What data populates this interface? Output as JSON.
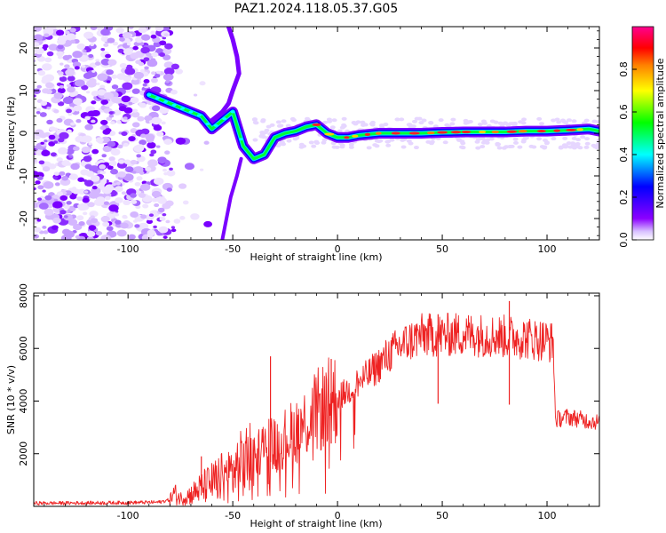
{
  "figure": {
    "title": "PAZ1.2024.118.05.37.G05"
  },
  "chart_data": [
    {
      "type": "heatmap",
      "title": "PAZ1.2024.118.05.37.G05",
      "xlabel": "Height of straight line (km)",
      "ylabel": "Frequency (Hz)",
      "xlim": [
        -145,
        125
      ],
      "ylim": [
        -25,
        25
      ],
      "xticks": [
        -100,
        -50,
        0,
        50,
        100
      ],
      "yticks": [
        -20,
        -10,
        0,
        10,
        20
      ],
      "colorbar": {
        "label": "Normalized spectral amplitude",
        "range": [
          0,
          1
        ],
        "ticks": [
          0.0,
          0.2,
          0.4,
          0.6,
          0.8
        ],
        "tick_labels": [
          "0.0",
          "0.2",
          "0.4",
          "0.6",
          "0.8"
        ],
        "colormap": [
          "#ffffff",
          "#e6d0ff",
          "#8b00ff",
          "#0000ff",
          "#00ffff",
          "#00ff00",
          "#ffff00",
          "#ff8000",
          "#ff0000",
          "#ff00a0"
        ]
      },
      "ridge": {
        "x": [
          -90,
          -85,
          -80,
          -75,
          -70,
          -65,
          -60,
          -55,
          -50,
          -45,
          -40,
          -35,
          -30,
          -25,
          -20,
          -15,
          -10,
          -5,
          0,
          5,
          10,
          20,
          30,
          40,
          50,
          60,
          70,
          80,
          90,
          100,
          110,
          120,
          125
        ],
        "y": [
          9,
          8,
          7,
          6,
          5,
          4,
          1,
          3,
          5,
          -3,
          -6,
          -5,
          -1,
          0,
          0.5,
          1.5,
          2,
          0,
          -1,
          -1,
          -0.5,
          0,
          0,
          0,
          0.2,
          0.3,
          0.3,
          0.3,
          0.5,
          0.5,
          0.7,
          1,
          0.5
        ]
      },
      "noise_region_x": [
        -145,
        -80
      ],
      "vertical_streak": {
        "x": [
          -52,
          -50,
          -48,
          -47,
          -50,
          -52,
          -55,
          -60
        ],
        "y_upper": [
          25,
          22,
          18,
          14,
          10,
          7,
          5,
          3
        ],
        "x_lower": [
          -55,
          -53,
          -51,
          -48,
          -46
        ],
        "y_lower": [
          -25,
          -20,
          -15,
          -10,
          -6
        ]
      }
    },
    {
      "type": "line",
      "xlabel": "Height of straight line (km)",
      "ylabel": "SNR (10 * v/v)",
      "xlim": [
        -145,
        125
      ],
      "ylim": [
        0,
        8100
      ],
      "xticks": [
        -100,
        -50,
        0,
        50,
        100
      ],
      "yticks": [
        2000,
        4000,
        6000,
        8000
      ],
      "series": [
        {
          "color": "#ee2222",
          "x": [
            -145,
            -120,
            -100,
            -85,
            -80,
            -78,
            -75,
            -70,
            -65,
            -60,
            -55,
            -50,
            -45,
            -40,
            -35,
            -32,
            -30,
            -25,
            -20,
            -15,
            -10,
            -5,
            0,
            5,
            10,
            15,
            20,
            25,
            30,
            35,
            40,
            50,
            60,
            70,
            80,
            90,
            100,
            103,
            104,
            110,
            120,
            125
          ],
          "y": [
            120,
            130,
            140,
            160,
            250,
            500,
            300,
            450,
            700,
            900,
            1100,
            1300,
            1600,
            1900,
            2300,
            2800,
            2300,
            2600,
            2900,
            3200,
            3600,
            3900,
            4100,
            4400,
            4700,
            5000,
            5400,
            5800,
            6100,
            6300,
            6500,
            6500,
            6550,
            6500,
            6450,
            6400,
            6300,
            6200,
            3300,
            3400,
            3250,
            3200
          ]
        }
      ],
      "spikes": [
        {
          "x": -32,
          "y": 5700
        },
        {
          "x": -3,
          "y": 5600
        },
        {
          "x": -65,
          "y": 1900
        },
        {
          "x": 82,
          "y": 7800
        },
        {
          "x": 48,
          "y": 7300
        }
      ]
    }
  ]
}
